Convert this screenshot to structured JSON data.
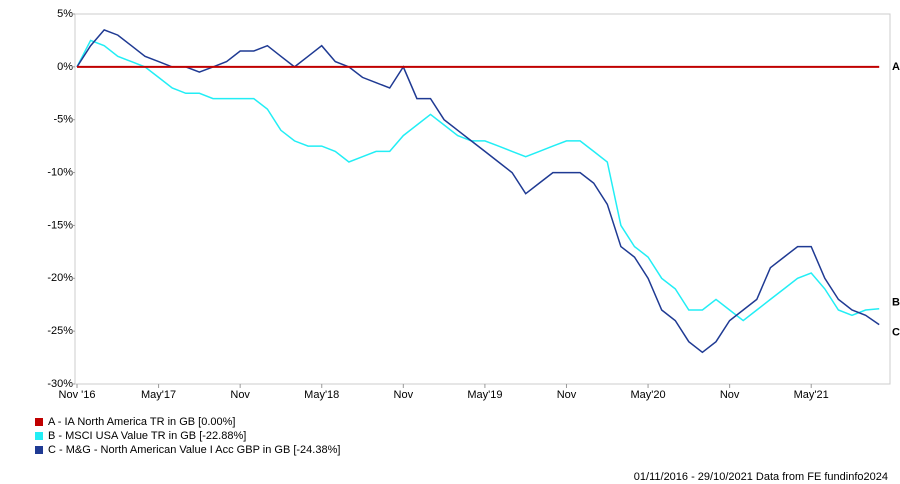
{
  "chart_data": {
    "type": "line",
    "categories": [
      "Nov '16",
      null,
      null,
      null,
      null,
      null,
      "May'17",
      null,
      null,
      null,
      null,
      null,
      "Nov",
      null,
      null,
      null,
      null,
      null,
      "May'18",
      null,
      null,
      null,
      null,
      null,
      "Nov",
      null,
      null,
      null,
      null,
      null,
      "May'19",
      null,
      null,
      null,
      null,
      null,
      "Nov",
      null,
      null,
      null,
      null,
      null,
      "May'20",
      null,
      null,
      null,
      null,
      null,
      "Nov",
      null,
      null,
      null,
      null,
      null,
      "May'21",
      null,
      null,
      null,
      null,
      null
    ],
    "series": [
      {
        "name": "A - IA North America TR in GB [0.00%]",
        "label": "A",
        "color": "#c00000",
        "values": [
          0,
          0,
          0,
          0,
          0,
          0,
          0,
          0,
          0,
          0,
          0,
          0,
          0,
          0,
          0,
          0,
          0,
          0,
          0,
          0,
          0,
          0,
          0,
          0,
          0,
          0,
          0,
          0,
          0,
          0,
          0,
          0,
          0,
          0,
          0,
          0,
          0,
          0,
          0,
          0,
          0,
          0,
          0,
          0,
          0,
          0,
          0,
          0,
          0,
          0,
          0,
          0,
          0,
          0,
          0,
          0,
          0,
          0,
          0,
          0
        ]
      },
      {
        "name": "B - MSCI USA Value TR in GB [-22.88%]",
        "label": "B",
        "color": "#22eef5",
        "values": [
          0,
          2.5,
          2,
          1,
          0.5,
          0,
          -1,
          -2,
          -2.5,
          -2.5,
          -3,
          -3,
          -3,
          -3,
          -4,
          -6,
          -7,
          -7.5,
          -7.5,
          -8,
          -9,
          -8.5,
          -8,
          -8,
          -6.5,
          -5.5,
          -4.5,
          -5.5,
          -6.5,
          -7,
          -7,
          -7.5,
          -8,
          -8.5,
          -8,
          -7.5,
          -7,
          -7,
          -8,
          -9,
          -15,
          -17,
          -18,
          -20,
          -21,
          -23,
          -23,
          -22,
          -23,
          -24,
          -23,
          -22,
          -21,
          -20,
          -19.5,
          -21,
          -23,
          -23.5,
          -23,
          -22.88
        ]
      },
      {
        "name": "C - M&G - North American Value I Acc GBP in GB [-24.38%]",
        "label": "C",
        "color": "#1f3a93",
        "values": [
          0,
          2,
          3.5,
          3,
          2,
          1,
          0.5,
          0,
          0,
          -0.5,
          0,
          0.5,
          1.5,
          1.5,
          2,
          1,
          0,
          1,
          2,
          0.5,
          0,
          -1,
          -1.5,
          -2,
          0,
          -3,
          -3,
          -5,
          -6,
          -7,
          -8,
          -9,
          -10,
          -12,
          -11,
          -10,
          -10,
          -10,
          -11,
          -13,
          -17,
          -18,
          -20,
          -23,
          -24,
          -26,
          -27,
          -26,
          -24,
          -23,
          -22,
          -19,
          -18,
          -17,
          -17,
          -20,
          -22,
          -23,
          -23.5,
          -24.38
        ]
      }
    ],
    "ylim": [
      -30,
      5
    ],
    "yticks": [
      {
        "value": -30,
        "label": "-30%"
      },
      {
        "value": -25,
        "label": "-25%"
      },
      {
        "value": -20,
        "label": "-20%"
      },
      {
        "value": -15,
        "label": "-15%"
      },
      {
        "value": -10,
        "label": "-10%"
      },
      {
        "value": -5,
        "label": "-5%"
      },
      {
        "value": 0,
        "label": "0%"
      },
      {
        "value": 5,
        "label": "5%"
      }
    ],
    "grid": false,
    "source": "01/11/2016 - 29/10/2021 Data from FE fundinfo2024"
  }
}
